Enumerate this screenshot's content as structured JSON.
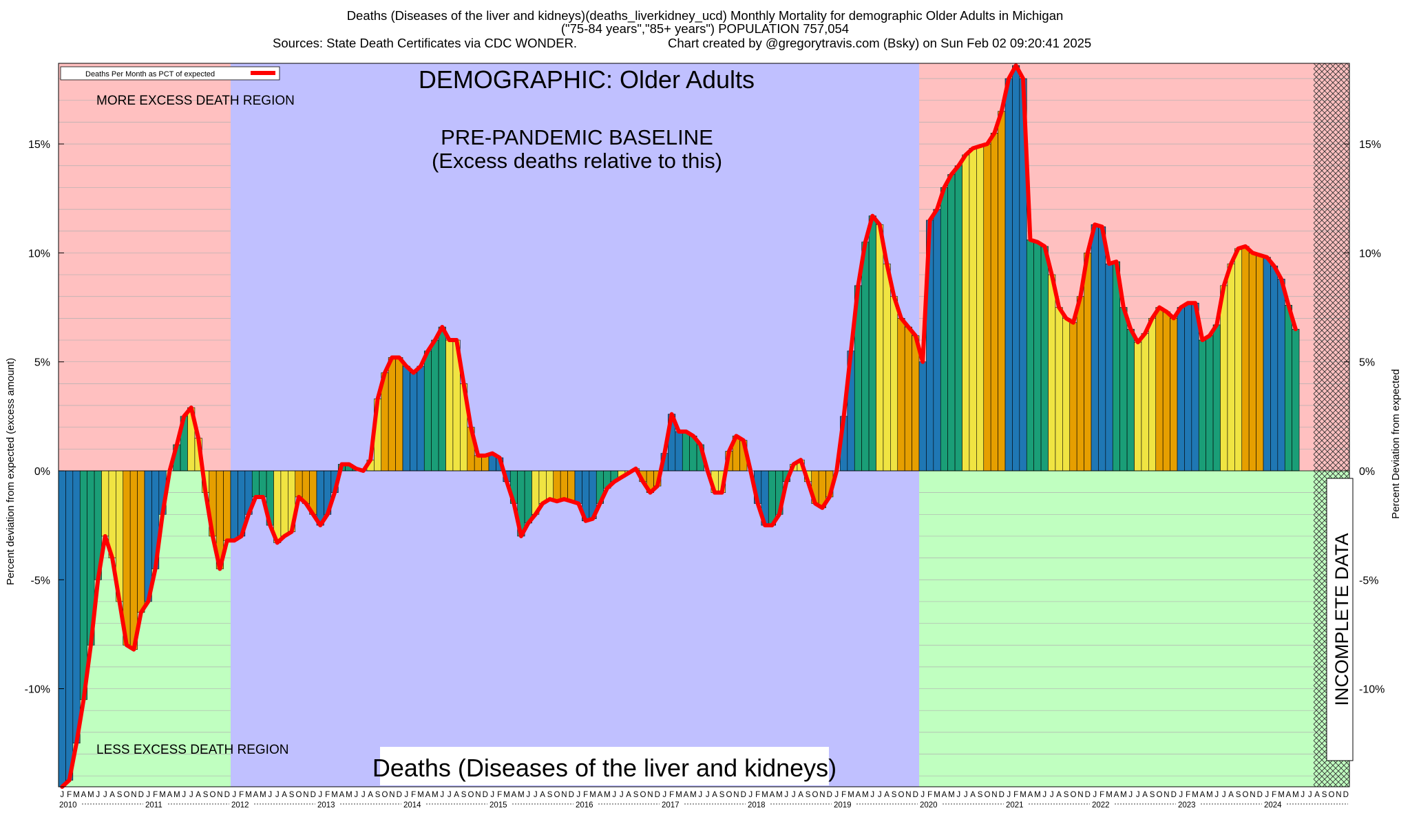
{
  "header": {
    "line1": "Deaths (Diseases of the liver and kidneys)(deaths_liverkidney_ucd) Monthly Mortality for demographic Older Adults in Michigan",
    "line2": "(\"75-84 years\",\"85+ years\") POPULATION 757,054",
    "line3a": "Sources: State Death Certificates via CDC WONDER.",
    "line3b": "Chart created by @gregorytravis.com (Bsky) on Sun Feb 02 09:20:41 2025"
  },
  "annotations": {
    "demographic": "DEMOGRAPHIC: Older Adults",
    "baseline1": "PRE-PANDEMIC BASELINE",
    "baseline2": "(Excess deaths relative to this)",
    "more_excess": "MORE EXCESS DEATH REGION",
    "less_excess": "LESS EXCESS DEATH REGION",
    "incomplete": "INCOMPLETE DATA",
    "bottom_title": "Deaths (Diseases of the liver and kidneys)"
  },
  "colors": {
    "excess_region": "#ffc0c0",
    "deficit_region": "#c0ffc0",
    "baseline_region": "#c0c0ff",
    "line": "#ff0000",
    "bar_cycle": [
      "#1f77b4",
      "#1a9e77",
      "#f0e442",
      "#e69f00"
    ]
  },
  "chart_data": {
    "type": "bar",
    "ylabel_left": "Percent deviation from expected (excess amount)",
    "ylabel_right": "Percent Deviation from expected",
    "legend": {
      "label": "Deaths Per Month as PCT of expected",
      "placement": "top-left"
    },
    "ylim": [
      -14.5,
      18.7
    ],
    "yticks": [
      15,
      10,
      5,
      0,
      -5,
      -10
    ],
    "ytick_labels": [
      "15%",
      "10%",
      "5%",
      "0%",
      "-5%",
      "-10%"
    ],
    "years": [
      "2010",
      "2011",
      "2012",
      "2013",
      "2014",
      "2015",
      "2016",
      "2017",
      "2018",
      "2019",
      "2020",
      "2021",
      "2022",
      "2023",
      "2024"
    ],
    "month_letters": [
      "J",
      "F",
      "M",
      "A",
      "M",
      "J",
      "J",
      "A",
      "S",
      "O",
      "N",
      "D"
    ],
    "start": "2010-01",
    "baseline_period": [
      "2012-01",
      "2019-12"
    ],
    "incomplete_period": [
      "2024-08",
      "2024-12"
    ],
    "values": [
      -14.5,
      -14.2,
      -12.5,
      -10.5,
      -8.0,
      -5.0,
      -3.0,
      -4.0,
      -6.0,
      -8.0,
      -8.2,
      -6.5,
      -6.0,
      -4.5,
      -2.0,
      0.0,
      1.2,
      2.5,
      2.9,
      1.5,
      -1.0,
      -3.0,
      -4.5,
      -3.2,
      -3.2,
      -3.0,
      -2.0,
      -1.2,
      -1.2,
      -2.5,
      -3.3,
      -3.0,
      -2.8,
      -1.2,
      -1.5,
      -2.0,
      -2.5,
      -2.0,
      -1.0,
      0.3,
      0.3,
      0.1,
      0.0,
      0.5,
      3.3,
      4.5,
      5.2,
      5.2,
      4.8,
      4.5,
      4.8,
      5.5,
      6.0,
      6.6,
      6.0,
      6.0,
      4.0,
      2.0,
      0.7,
      0.7,
      0.8,
      0.6,
      -0.5,
      -1.5,
      -3.0,
      -2.4,
      -2.0,
      -1.5,
      -1.3,
      -1.4,
      -1.3,
      -1.4,
      -1.5,
      -2.3,
      -2.2,
      -1.5,
      -0.8,
      -0.5,
      -0.3,
      -0.1,
      0.1,
      -0.5,
      -1.0,
      -0.7,
      0.8,
      2.6,
      1.8,
      1.8,
      1.6,
      1.2,
      0.0,
      -1.0,
      -1.0,
      0.9,
      1.6,
      1.4,
      0.0,
      -1.5,
      -2.5,
      -2.5,
      -2.0,
      -0.5,
      0.3,
      0.5,
      -0.5,
      -1.5,
      -1.7,
      -1.2,
      0.0,
      2.5,
      5.5,
      8.5,
      10.5,
      11.7,
      11.3,
      9.5,
      8.0,
      7.0,
      6.6,
      6.2,
      5.0,
      11.5,
      12.0,
      13.0,
      13.6,
      14.0,
      14.5,
      14.8,
      14.9,
      15.0,
      15.5,
      16.5,
      18.0,
      18.6,
      18.0,
      10.6,
      10.5,
      10.3,
      9.0,
      7.5,
      7.0,
      6.8,
      8.0,
      10.0,
      11.3,
      11.2,
      9.5,
      9.6,
      7.5,
      6.5,
      5.9,
      6.3,
      7.0,
      7.5,
      7.3,
      7.0,
      7.5,
      7.7,
      7.7,
      6.0,
      6.2,
      6.7,
      8.5,
      9.5,
      10.2,
      10.3,
      10.0,
      9.9,
      9.8,
      9.4,
      8.8,
      7.6,
      6.5
    ]
  }
}
